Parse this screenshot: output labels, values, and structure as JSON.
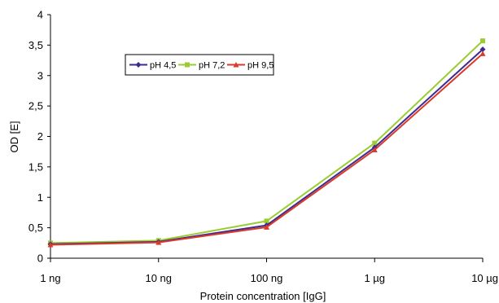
{
  "chart_data": {
    "type": "line",
    "xlabel": "Protein concentration [IgG]",
    "ylabel": "OD [E]",
    "categories": [
      "1 ng",
      "10 ng",
      "100 ng",
      "1 µg",
      "10 µg"
    ],
    "y_ticks": [
      "0",
      "0,5",
      "1",
      "1,5",
      "2",
      "2,5",
      "3",
      "3,5",
      "4"
    ],
    "ylim": [
      0,
      4
    ],
    "grid": false,
    "legend_position": "top-left",
    "series": [
      {
        "name": "pH 4,5",
        "color": "#3d2b8f",
        "marker": "diamond",
        "values": [
          0.23,
          0.27,
          0.54,
          1.82,
          3.43
        ]
      },
      {
        "name": "pH 7,2",
        "color": "#9acd32",
        "marker": "square",
        "values": [
          0.25,
          0.29,
          0.61,
          1.89,
          3.57
        ]
      },
      {
        "name": "pH 9,5",
        "color": "#d93a2b",
        "marker": "triangle",
        "values": [
          0.22,
          0.26,
          0.51,
          1.78,
          3.36
        ]
      }
    ]
  }
}
